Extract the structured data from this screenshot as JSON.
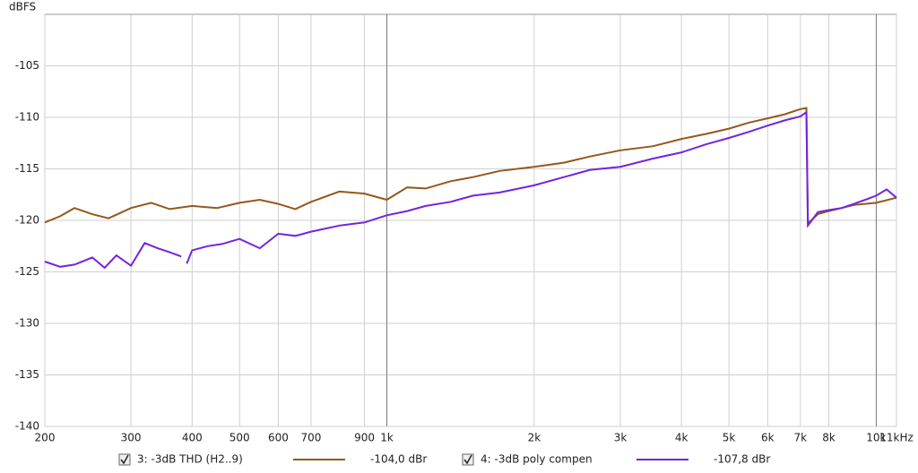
{
  "chart_data": {
    "type": "line",
    "y_label": "dBFS",
    "x_scale": "log",
    "grid": true,
    "xlim": [
      200,
      11000
    ],
    "ylim": [
      -140,
      -100
    ],
    "xticks": [
      200,
      300,
      400,
      500,
      600,
      700,
      900,
      {
        "value": 1000,
        "label": "1k"
      },
      {
        "value": 2000,
        "label": "2k"
      },
      {
        "value": 3000,
        "label": "3k"
      },
      {
        "value": 4000,
        "label": "4k"
      },
      {
        "value": 5000,
        "label": "5k"
      },
      {
        "value": 6000,
        "label": "6k"
      },
      {
        "value": 7000,
        "label": "7k"
      },
      {
        "value": 8000,
        "label": "8k"
      },
      {
        "value": 10000,
        "label": "10k"
      },
      {
        "value": 11000,
        "label": "11kHz"
      }
    ],
    "yticks": [
      -140,
      -135,
      -130,
      -125,
      -120,
      -115,
      -110,
      -105
    ],
    "series": [
      {
        "name": "3: -3dB THD (H2..9)",
        "color": "#94581a",
        "legend_value": "-104,0 dBr",
        "x": [
          200,
          215,
          230,
          250,
          270,
          300,
          330,
          360,
          400,
          450,
          500,
          550,
          600,
          650,
          700,
          800,
          900,
          1000,
          1100,
          1200,
          1350,
          1500,
          1700,
          2000,
          2300,
          2600,
          3000,
          3500,
          4000,
          4500,
          5000,
          5500,
          6000,
          6500,
          7000,
          7200,
          7250,
          7600,
          8000,
          8500,
          9000,
          10000,
          11000
        ],
        "values": [
          -120.2,
          -119.6,
          -118.8,
          -119.4,
          -119.8,
          -118.8,
          -118.3,
          -118.9,
          -118.6,
          -118.8,
          -118.3,
          -118.0,
          -118.4,
          -118.9,
          -118.2,
          -117.2,
          -117.4,
          -118.0,
          -116.8,
          -116.9,
          -116.2,
          -115.8,
          -115.2,
          -114.8,
          -114.4,
          -113.8,
          -113.2,
          -112.8,
          -112.1,
          -111.6,
          -111.1,
          -110.5,
          -110.1,
          -109.7,
          -109.2,
          -109.1,
          -120.3,
          -119.4,
          -119.1,
          -118.8,
          -118.5,
          -118.3,
          -117.8
        ]
      },
      {
        "name": "4: -3dB poly compen",
        "color": "#7324e0",
        "legend_value": "-107,8 dBr",
        "x": [
          200,
          215,
          230,
          250,
          265,
          280,
          300,
          320,
          340,
          360,
          380,
          385,
          390,
          400,
          430,
          460,
          500,
          550,
          600,
          650,
          700,
          800,
          900,
          1000,
          1100,
          1200,
          1350,
          1500,
          1700,
          2000,
          2300,
          2600,
          3000,
          3500,
          4000,
          4500,
          5000,
          5500,
          6000,
          6500,
          7000,
          7200,
          7250,
          7600,
          8000,
          8500,
          9000,
          9500,
          10000,
          10500,
          11000
        ],
        "values": [
          -124.0,
          -124.5,
          -124.3,
          -123.6,
          -124.6,
          -123.4,
          -124.4,
          -122.2,
          -122.7,
          -123.1,
          -123.5,
          null,
          -124.2,
          -122.9,
          -122.5,
          -122.3,
          -121.8,
          -122.7,
          -121.3,
          -121.5,
          -121.1,
          -120.5,
          -120.2,
          -119.5,
          -119.1,
          -118.6,
          -118.2,
          -117.6,
          -117.3,
          -116.6,
          -115.8,
          -115.1,
          -114.8,
          -114.0,
          -113.4,
          -112.6,
          -112.0,
          -111.4,
          -110.8,
          -110.3,
          -109.9,
          -109.5,
          -120.5,
          -119.2,
          -119.0,
          -118.8,
          -118.4,
          -118.0,
          -117.6,
          -117.0,
          -117.8
        ]
      }
    ]
  }
}
